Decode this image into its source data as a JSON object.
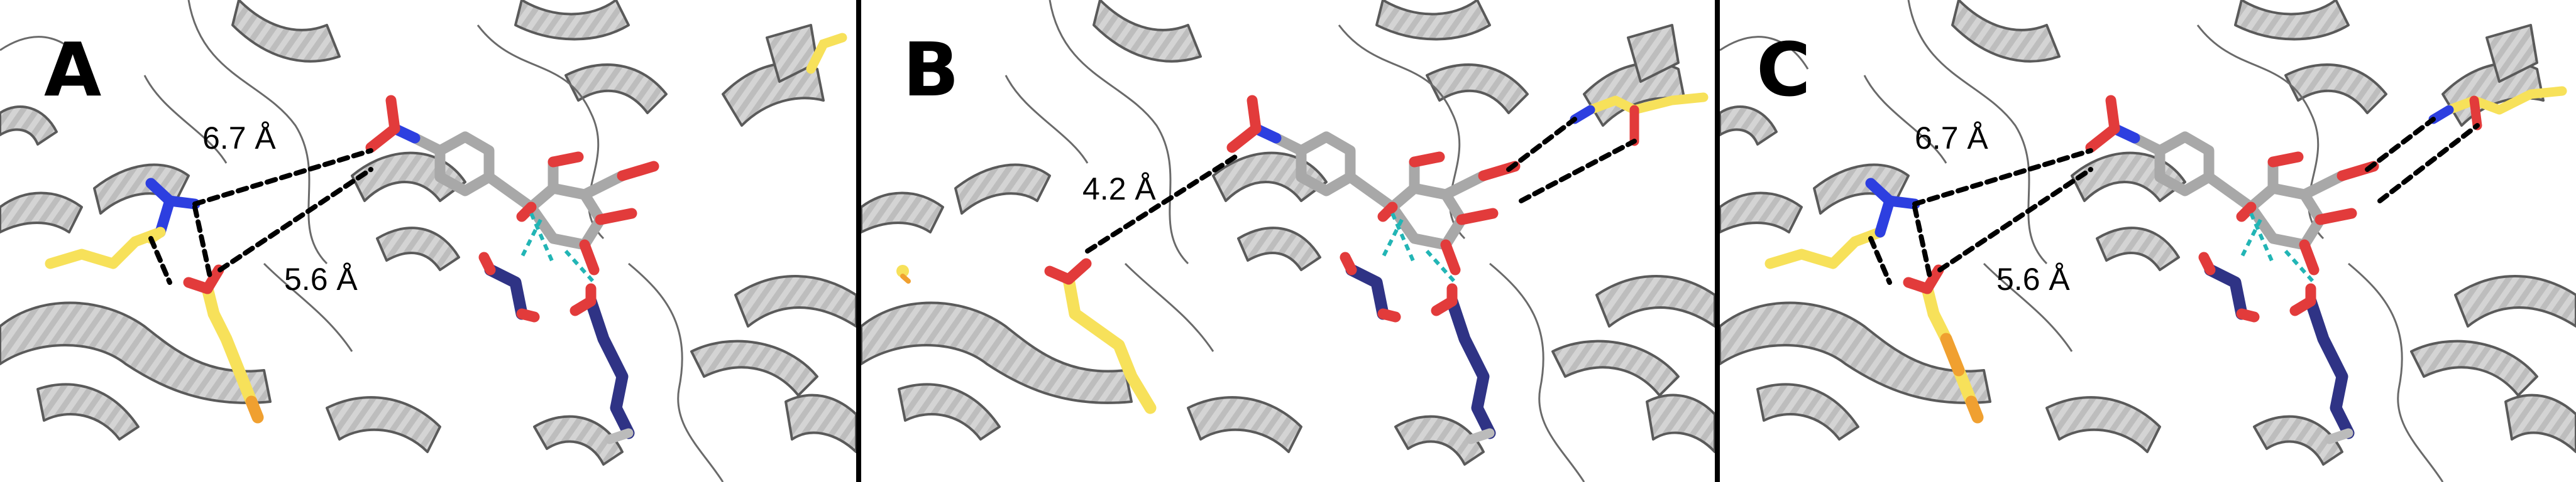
{
  "figure": {
    "panels": [
      {
        "letter": "A",
        "distances": [
          "6.7 Å",
          "5.6 Å"
        ]
      },
      {
        "letter": "B",
        "distances": [
          "4.2 Å"
        ]
      },
      {
        "letter": "C",
        "distances": [
          "6.7 Å",
          "5.6 Å"
        ]
      }
    ],
    "colors": {
      "protein_cartoon": "#c8c8c8",
      "cartoon_edge": "#5a5a5a",
      "ligand_carbon": "#a8a8a8",
      "side_chain_carbon_yellow": "#f7e15a",
      "side_chain_carbon_orange": "#f0a030",
      "side_chain_carbon_navy": "#2f3385",
      "oxygen": "#e23b3b",
      "nitrogen": "#2d3fe0",
      "hydrogen_bond": "#22b5b5",
      "distance_line": "#000000",
      "panel_divider": "#000000"
    }
  }
}
